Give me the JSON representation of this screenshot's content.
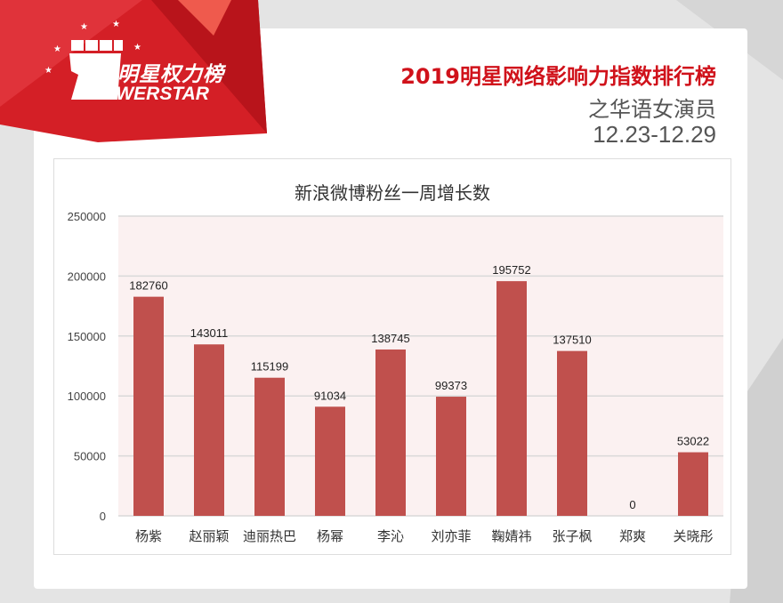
{
  "logo": {
    "cn": "明星权力榜",
    "en": "POWERSTAR"
  },
  "header": {
    "title": "2019明星网络影响力指数排行榜",
    "subtitle": "之华语女演员",
    "date_range": "12.23-12.29"
  },
  "colors": {
    "bar": "#c0504d",
    "title": "#d0121b",
    "plot_bg": "#fbf1f1"
  },
  "chart_data": {
    "type": "bar",
    "title": "新浪微博粉丝一周增长数",
    "categories": [
      "杨紫",
      "赵丽颖",
      "迪丽热巴",
      "杨幂",
      "李沁",
      "刘亦菲",
      "鞠婧祎",
      "张子枫",
      "郑爽",
      "关晓彤"
    ],
    "values": [
      182760,
      143011,
      115199,
      91034,
      138745,
      99373,
      195752,
      137510,
      0,
      53022
    ],
    "yticks": [
      0,
      50000,
      100000,
      150000,
      200000,
      250000
    ],
    "ylim": [
      0,
      250000
    ],
    "xlabel": "",
    "ylabel": "",
    "grid": true,
    "legend": "none"
  }
}
